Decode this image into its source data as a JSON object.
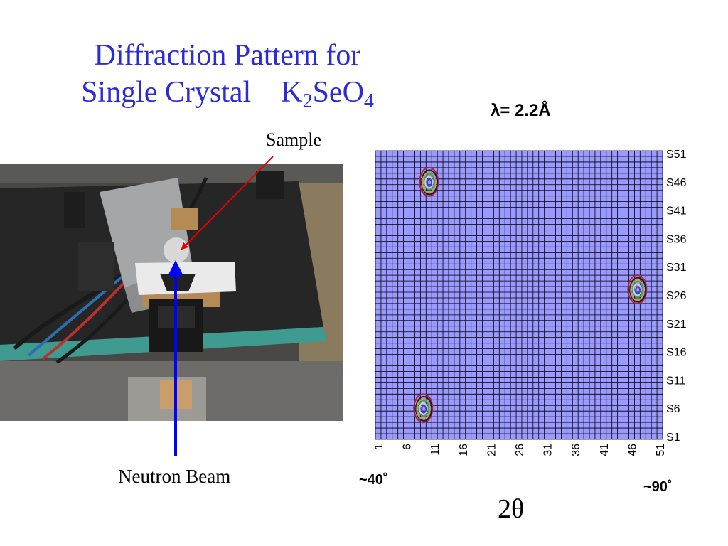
{
  "title": {
    "line1": "Diffraction Pattern for",
    "line2_prefix": "Single Crystal K",
    "sub1": "2",
    "mid": "SeO",
    "sub2": "4"
  },
  "wavelength": "λ= 2.2Å",
  "labels": {
    "sample": "Sample",
    "neutron_beam": "Neutron Beam"
  },
  "axis": {
    "left_angle": "~40˚",
    "right_angle": "~90˚",
    "x_title": "2θ"
  },
  "colors": {
    "title": "#2b2bd8",
    "grid_fill": "#9999ff",
    "grid_line": "#000000",
    "beam_arrow": "#0000ff",
    "sample_arrow": "#e00000"
  },
  "chart_data": {
    "type": "heatmap",
    "x": {
      "min": 1,
      "max": 51,
      "tick_labels": [
        "1",
        "6",
        "11",
        "16",
        "21",
        "26",
        "31",
        "36",
        "41",
        "46",
        "51"
      ]
    },
    "y": {
      "min": 1,
      "max": 51,
      "tick_labels": [
        "S51",
        "S46",
        "S41",
        "S36",
        "S31",
        "S26",
        "S21",
        "S16",
        "S11",
        "S6",
        "S1"
      ]
    },
    "peaks": [
      {
        "x": 10,
        "y": 46
      },
      {
        "x": 47,
        "y": 27
      },
      {
        "x": 9,
        "y": 6
      }
    ],
    "grid": true
  }
}
